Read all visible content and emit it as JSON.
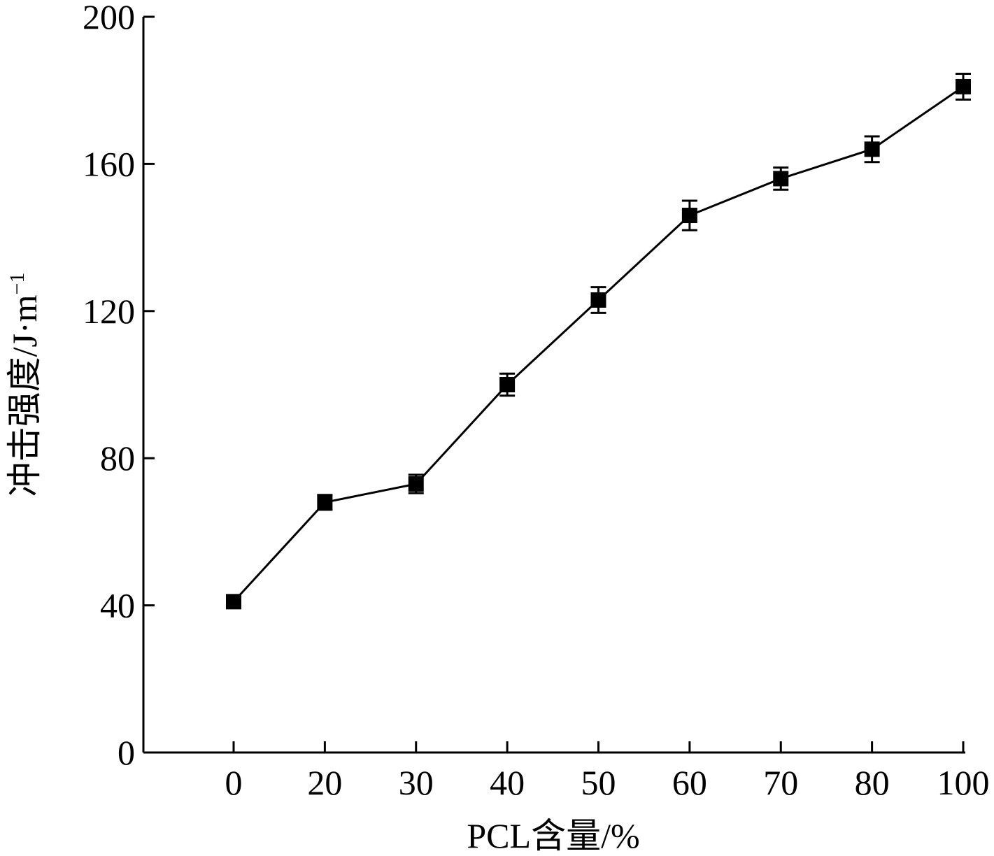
{
  "chart_data": {
    "type": "line",
    "categories": [
      "0",
      "20",
      "30",
      "40",
      "50",
      "60",
      "70",
      "80",
      "100"
    ],
    "series": [
      {
        "values": [
          41,
          68,
          73,
          100,
          123,
          146,
          156,
          164,
          181
        ],
        "errors": [
          1.5,
          2,
          2.5,
          3,
          3.5,
          4,
          3,
          3.5,
          3.5
        ]
      }
    ],
    "xlabel": "PCL含量/%",
    "ylabel": "冲击强度/J·m",
    "ylabel_superscript": "−1",
    "ylim": [
      0,
      200
    ],
    "yticks": [
      "0",
      "40",
      "80",
      "120",
      "160",
      "200"
    ],
    "grid": false,
    "marker": "filled-square",
    "line_color": "#000000",
    "marker_color": "#000000"
  }
}
